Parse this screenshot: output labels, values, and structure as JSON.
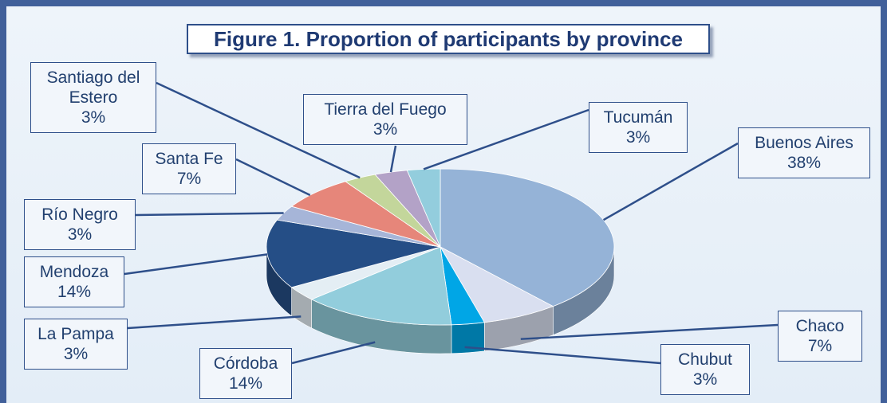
{
  "chart_data": {
    "type": "pie",
    "title": "Figure 1. Proportion of participants by province",
    "categories": [
      "Buenos Aires",
      "Chaco",
      "Chubut",
      "Córdoba",
      "La Pampa",
      "Mendoza",
      "Río Negro",
      "Santa Fe",
      "Santiago del Estero",
      "Tierra del Fuego",
      "Tucumán"
    ],
    "values": [
      38,
      7,
      3,
      14,
      3,
      14,
      3,
      7,
      3,
      3,
      3
    ],
    "value_labels": [
      "38%",
      "7%",
      "3%",
      "14%",
      "3%",
      "14%",
      "3%",
      "7%",
      "3%",
      "3%",
      "3%"
    ],
    "colors": [
      "#95b3d7",
      "#d9dff0",
      "#00a6e6",
      "#92cddc",
      "#e4eef4",
      "#254e86",
      "#a6b5d8",
      "#e6867a",
      "#c3d69b",
      "#b3a2c7",
      "#93cddd"
    ]
  }
}
